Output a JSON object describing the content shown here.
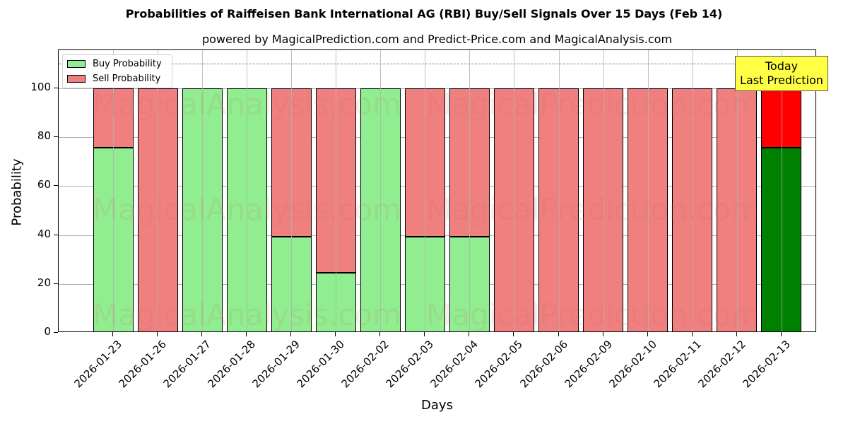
{
  "header": {
    "title": "Probabilities of Raiffeisen Bank International AG (RBI) Buy/Sell Signals Over 15 Days (Feb 14)",
    "subtitle": "powered by MagicalPrediction.com and Predict-Price.com and MagicalAnalysis.com"
  },
  "legend": {
    "buy_label": "Buy Probability",
    "sell_label": "Sell Probability"
  },
  "annotation": {
    "line1": "Today",
    "line2": "Last Prediction"
  },
  "watermarks": [
    "MagicalAnalysis.com",
    "MagicalPrediction.com"
  ],
  "colors": {
    "buy": "#90ee90",
    "sell": "#f08080",
    "buy_today": "#008000",
    "sell_today": "#ff0000",
    "annotation_bg": "#ffff44"
  },
  "axes": {
    "xlabel": "Days",
    "ylabel": "Probability",
    "yticks": [
      "0",
      "20",
      "40",
      "60",
      "80",
      "100"
    ]
  },
  "chart_data": {
    "type": "bar",
    "stacked": true,
    "title": "Probabilities of Raiffeisen Bank International AG (RBI) Buy/Sell Signals Over 15 Days (Feb 14)",
    "subtitle": "powered by MagicalPrediction.com and Predict-Price.com and MagicalAnalysis.com",
    "xlabel": "Days",
    "ylabel": "Probability",
    "ylim": [
      0,
      115
    ],
    "yticks": [
      0,
      20,
      40,
      60,
      80,
      100
    ],
    "grid": true,
    "legend_position": "upper left",
    "reference_line": {
      "y": 110,
      "style": "dashed",
      "color": "#808080"
    },
    "annotations": [
      {
        "text": "Today\nLast Prediction",
        "x": "2026-02-13"
      }
    ],
    "categories": [
      "2026-01-23",
      "2026-01-26",
      "2026-01-27",
      "2026-01-28",
      "2026-01-29",
      "2026-01-30",
      "2026-02-02",
      "2026-02-03",
      "2026-02-04",
      "2026-02-05",
      "2026-02-06",
      "2026-02-09",
      "2026-02-10",
      "2026-02-11",
      "2026-02-12",
      "2026-02-13"
    ],
    "series": [
      {
        "name": "Buy Probability",
        "values": [
          75.7,
          0,
          100,
          100,
          39.3,
          24.6,
          100,
          39.3,
          39.3,
          0,
          0,
          0,
          0,
          0,
          0,
          75.7
        ]
      },
      {
        "name": "Sell Probability",
        "values": [
          24.3,
          100,
          0,
          0,
          60.7,
          75.4,
          0,
          60.7,
          60.7,
          100,
          100,
          100,
          100,
          100,
          100,
          24.3
        ]
      }
    ]
  }
}
